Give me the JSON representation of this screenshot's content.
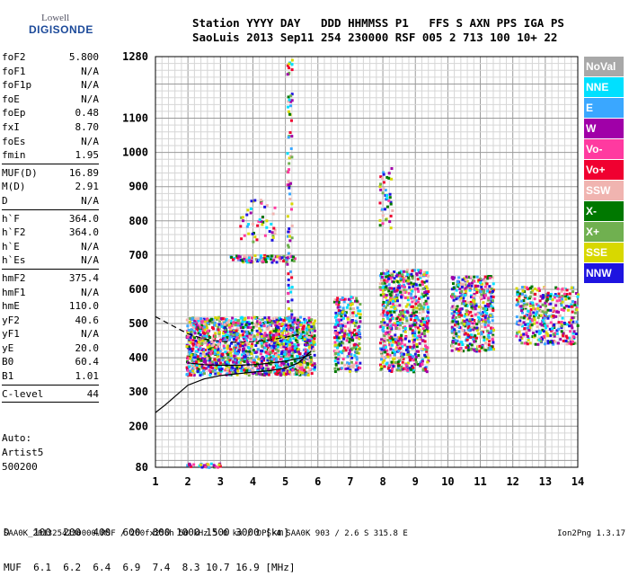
{
  "logo": {
    "line1": "Lowell",
    "line2": "DIGISONDE"
  },
  "header": {
    "line1": "Station YYYY DAY   DDD HHMMSS P1   FFS S AXN PPS IGA PS",
    "line2": "SaoLuis 2013 Sep11 254 230000 RSF 005 2 713 100 10+ 22"
  },
  "params": [
    {
      "name": "foF2",
      "value": "5.800"
    },
    {
      "name": "foF1",
      "value": "N/A"
    },
    {
      "name": "foF1p",
      "value": "N/A"
    },
    {
      "name": "foE",
      "value": "N/A"
    },
    {
      "name": "foEp",
      "value": "0.48"
    },
    {
      "name": "fxI",
      "value": "8.70"
    },
    {
      "name": "foEs",
      "value": "N/A"
    },
    {
      "name": "fmin",
      "value": "1.95"
    },
    {
      "sep": true
    },
    {
      "name": "MUF(D)",
      "value": "16.89"
    },
    {
      "name": "M(D)",
      "value": "2.91"
    },
    {
      "name": "D",
      "value": "N/A"
    },
    {
      "sep": true
    },
    {
      "name": "h`F",
      "value": "364.0"
    },
    {
      "name": "h`F2",
      "value": "364.0"
    },
    {
      "name": "h`E",
      "value": "N/A"
    },
    {
      "name": "h`Es",
      "value": "N/A"
    },
    {
      "sep": true
    },
    {
      "name": "hmF2",
      "value": "375.4"
    },
    {
      "name": "hmF1",
      "value": "N/A"
    },
    {
      "name": "hmE",
      "value": "110.0"
    },
    {
      "name": "yF2",
      "value": "40.6"
    },
    {
      "name": "yF1",
      "value": "N/A"
    },
    {
      "name": "yE",
      "value": "20.0"
    },
    {
      "name": "B0",
      "value": "60.4"
    },
    {
      "name": "B1",
      "value": "1.01"
    },
    {
      "sep": true
    },
    {
      "name": "C-level",
      "value": "44"
    },
    {
      "sep": true
    }
  ],
  "auto": {
    "l1": "Auto:",
    "l2": "Artist5",
    "l3": "500200"
  },
  "legend": [
    {
      "label": "NoVal",
      "color": "#a8a8a8"
    },
    {
      "label": "NNE",
      "color": "#00e0ff"
    },
    {
      "label": "E",
      "color": "#3aa7ff"
    },
    {
      "label": "W",
      "color": "#a000a8"
    },
    {
      "label": "Vo-",
      "color": "#ff3aa0"
    },
    {
      "label": "Vo+",
      "color": "#f00030"
    },
    {
      "label": "SSW",
      "color": "#f0b4b0"
    },
    {
      "label": "X-",
      "color": "#007800"
    },
    {
      "label": "X+",
      "color": "#70b050"
    },
    {
      "label": "SSE",
      "color": "#d8d800"
    },
    {
      "label": "NNW",
      "color": "#1e14e0"
    }
  ],
  "dtable": {
    "row1": "D    100  200  400  600  800 1000 1500 3000 [km]",
    "row2": "MUF  6.1  6.2  6.4  6.9  7.4  8.3 10.7 16.9 [MHz]"
  },
  "footer": "SAA0K_2013254230000.RSF / 260fx256h 50 kHz 5.0 km / DPS-4 SAA0K 903 / 2.6 S 315.8 E",
  "version": "Ion2Png 1.3.17",
  "chart_data": {
    "type": "scatter",
    "title": "",
    "xlabel": "",
    "ylabel": "",
    "xlim": [
      1,
      14
    ],
    "ylim": [
      80,
      1280
    ],
    "x_ticks": [
      1,
      2,
      3,
      4,
      5,
      6,
      7,
      8,
      9,
      10,
      11,
      12,
      13,
      14
    ],
    "y_ticks": [
      80,
      200,
      300,
      400,
      500,
      600,
      700,
      800,
      900,
      1000,
      1100,
      1280
    ],
    "grid": true,
    "legend_position": "right",
    "trace_curves": [
      {
        "name": "",
        "style": "solid",
        "x": [
          1.0,
          1.3,
          1.7,
          2.0,
          2.5,
          3.0,
          3.5,
          4.0,
          4.5,
          5.0,
          5.4,
          5.8
        ],
        "y": [
          240,
          262,
          295,
          320,
          338,
          348,
          353,
          358,
          362,
          370,
          385,
          420
        ]
      },
      {
        "name": "",
        "style": "solid",
        "x": [
          2.0,
          2.5,
          3.0,
          3.5,
          4.0,
          4.5,
          5.0,
          5.5,
          5.8
        ],
        "y": [
          385,
          380,
          378,
          378,
          380,
          384,
          390,
          400,
          410
        ]
      },
      {
        "name": "",
        "style": "dashed",
        "x": [
          1.0,
          1.5,
          2.0,
          2.5,
          3.0,
          3.5,
          4.0,
          4.5,
          5.0,
          5.5
        ],
        "y": [
          520,
          495,
          470,
          455,
          448,
          445,
          447,
          452,
          460,
          470
        ]
      }
    ],
    "echo_clusters": [
      {
        "xmin": 1.95,
        "xmax": 5.9,
        "ymin": 350,
        "ymax": 520,
        "n": 1600
      },
      {
        "xmin": 6.5,
        "xmax": 7.3,
        "ymin": 360,
        "ymax": 580,
        "n": 260
      },
      {
        "xmin": 7.9,
        "xmax": 9.4,
        "ymin": 360,
        "ymax": 660,
        "n": 700
      },
      {
        "xmin": 10.1,
        "xmax": 11.4,
        "ymin": 420,
        "ymax": 640,
        "n": 460
      },
      {
        "xmin": 12.1,
        "xmax": 14.0,
        "ymin": 440,
        "ymax": 610,
        "n": 380
      },
      {
        "xmin": 3.6,
        "xmax": 4.7,
        "ymin": 740,
        "ymax": 870,
        "n": 50
      },
      {
        "xmin": 3.3,
        "xmax": 5.3,
        "ymin": 680,
        "ymax": 700,
        "n": 90
      },
      {
        "xmin": 5.05,
        "xmax": 5.2,
        "ymin": 400,
        "ymax": 1280,
        "n": 90
      },
      {
        "xmin": 7.9,
        "xmax": 8.3,
        "ymin": 780,
        "ymax": 960,
        "n": 40
      },
      {
        "xmin": 1.9,
        "xmax": 3.0,
        "ymin": 80,
        "ymax": 92,
        "n": 30
      }
    ]
  }
}
